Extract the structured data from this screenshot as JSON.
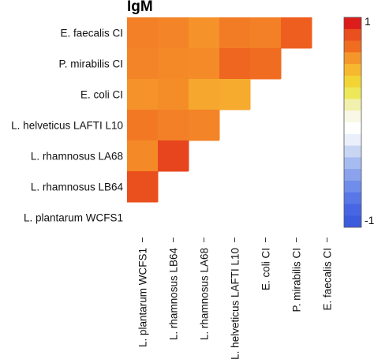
{
  "chart_data": {
    "type": "heatmap",
    "title": "IgM",
    "row_labels": [
      "E. faecalis CI",
      "P. mirabilis CI",
      "E. coli CI",
      "L. helveticus LAFTI L10",
      "L. rhamnosus LA68",
      "L. rhamnosus LB64",
      "L. plantarum WCFS1"
    ],
    "column_labels": [
      "L. plantarum WCFS1",
      "L. rhamnosus LB64",
      "L. rhamnosus LA68",
      "L. helveticus LAFTI L10",
      "E. coli CI",
      "P. mirabilis CI",
      "E. faecalis CI"
    ],
    "values": [
      [
        0.7,
        0.68,
        0.62,
        0.72,
        0.7,
        0.85,
        null
      ],
      [
        0.68,
        0.66,
        0.65,
        0.82,
        0.8,
        null,
        null
      ],
      [
        0.62,
        0.64,
        0.55,
        0.54,
        null,
        null,
        null
      ],
      [
        0.74,
        0.7,
        0.68,
        null,
        null,
        null,
        null
      ],
      [
        0.66,
        0.92,
        null,
        null,
        null,
        null,
        null
      ],
      [
        0.9,
        null,
        null,
        null,
        null,
        null,
        null
      ],
      [
        null,
        null,
        null,
        null,
        null,
        null,
        null
      ]
    ],
    "color_range": [
      -1,
      1
    ],
    "colorbar": {
      "tick_labels": [
        "1",
        "-1"
      ],
      "colors": [
        "#dd1c1c",
        "#ea4f1e",
        "#f06c20",
        "#f5962a",
        "#f7b830",
        "#f2d435",
        "#ede85a",
        "#f2f0ad",
        "#f9f8e6",
        "#ffffff",
        "#eaeffa",
        "#c8d6f4",
        "#a6bbf0",
        "#8aa3ec",
        "#708deb",
        "#5a77e7",
        "#4866e3",
        "#3d5bdd"
      ]
    }
  }
}
